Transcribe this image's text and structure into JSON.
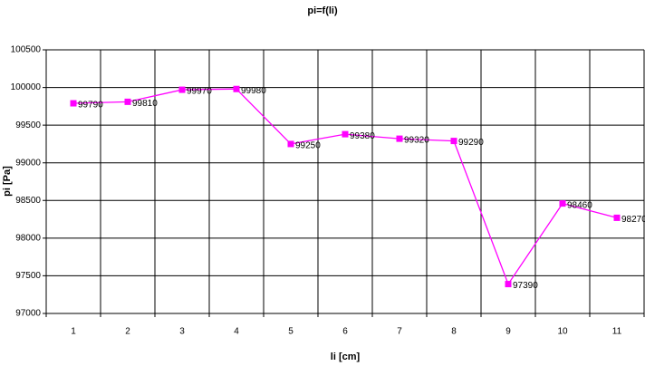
{
  "chart_data": {
    "type": "line",
    "title": "pi=f(li)",
    "x_label": "li [cm]",
    "y_label": "pi [Pa]",
    "categories": [
      "1",
      "2",
      "3",
      "4",
      "5",
      "6",
      "7",
      "8",
      "9",
      "10",
      "11"
    ],
    "series": [
      {
        "color": "#ff00ff",
        "values": [
          99790,
          99810,
          99970,
          99980,
          99250,
          99380,
          99320,
          99290,
          97390,
          98460,
          98270
        ]
      }
    ],
    "ylim": [
      97000,
      100500
    ],
    "yticks": [
      97000,
      97500,
      98000,
      98500,
      99000,
      99500,
      100000,
      100500
    ],
    "grid": true
  }
}
